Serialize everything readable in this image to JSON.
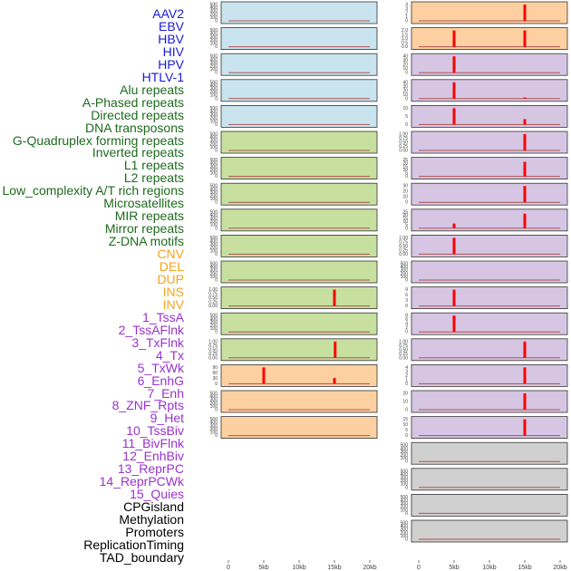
{
  "colors": {
    "blue": "#1a1ad4",
    "green": "#1d6b1d",
    "orange": "#f4a41c",
    "purple": "#9a32cd",
    "black": "#000000",
    "fill_lightblue": "#c9e4ee",
    "fill_green": "#c7e09f",
    "fill_orange": "#fcd0a0",
    "fill_lavender": "#d6c6e3",
    "fill_gray": "#d0d0d0",
    "bar": "#ff0000",
    "baseline": "#b05050"
  },
  "chart_data": {
    "type": "bar",
    "x_axis": {
      "ticks": [
        "0",
        "5kb",
        "10kb",
        "15kb",
        "20kb"
      ],
      "tick_values": [
        0,
        5000,
        10000,
        15000,
        20000
      ],
      "range": [
        0,
        20000
      ]
    },
    "rows": [
      {
        "label": "AAV2",
        "color": "blue"
      },
      {
        "label": "EBV",
        "color": "blue"
      },
      {
        "label": "HBV",
        "color": "blue"
      },
      {
        "label": "HIV",
        "color": "blue"
      },
      {
        "label": "HPV",
        "color": "blue"
      },
      {
        "label": "HTLV-1",
        "color": "blue"
      },
      {
        "label": "Alu repeats",
        "color": "green"
      },
      {
        "label": "A-Phased repeats",
        "color": "green"
      },
      {
        "label": "Directed repeats",
        "color": "green"
      },
      {
        "label": "DNA transposons",
        "color": "green"
      },
      {
        "label": "G-Quadruplex forming repeats",
        "color": "green"
      },
      {
        "label": "Inverted repeats",
        "color": "green"
      },
      {
        "label": "L1 repeats",
        "color": "green"
      },
      {
        "label": "L2 repeats",
        "color": "green"
      },
      {
        "label": "Low_complexity A/T rich regions",
        "color": "green"
      },
      {
        "label": "Microsatellites",
        "color": "green"
      },
      {
        "label": "MIR repeats",
        "color": "green"
      },
      {
        "label": "Mirror repeats",
        "color": "green"
      },
      {
        "label": "Z-DNA motifs",
        "color": "green"
      },
      {
        "label": "CNV",
        "color": "orange"
      },
      {
        "label": "DEL",
        "color": "orange"
      },
      {
        "label": "DUP",
        "color": "orange"
      },
      {
        "label": "INS",
        "color": "orange"
      },
      {
        "label": "INV",
        "color": "orange"
      },
      {
        "label": "1_TssA",
        "color": "purple"
      },
      {
        "label": "2_TssAFlnk",
        "color": "purple"
      },
      {
        "label": "3_TxFlnk",
        "color": "purple"
      },
      {
        "label": "4_Tx",
        "color": "purple"
      },
      {
        "label": "5_TxWk",
        "color": "purple"
      },
      {
        "label": "6_EnhG",
        "color": "purple"
      },
      {
        "label": "7_Enh",
        "color": "purple"
      },
      {
        "label": "8_ZNF_Rpts",
        "color": "purple"
      },
      {
        "label": "9_Het",
        "color": "purple"
      },
      {
        "label": "10_TssBiv",
        "color": "purple"
      },
      {
        "label": "11_BivFlnk",
        "color": "purple"
      },
      {
        "label": "12_EnhBiv",
        "color": "purple"
      },
      {
        "label": "13_ReprPC",
        "color": "purple"
      },
      {
        "label": "14_ReprPCWk",
        "color": "purple"
      },
      {
        "label": "15_Quies",
        "color": "purple"
      },
      {
        "label": "CPGisland",
        "color": "black"
      },
      {
        "label": "Methylation",
        "color": "black"
      },
      {
        "label": "Promoters",
        "color": "black"
      },
      {
        "label": "ReplicationTiming",
        "color": "black"
      },
      {
        "label": "TAD_boundary",
        "color": "black"
      }
    ],
    "left_panels": [
      {
        "fill": "fill_lightblue",
        "yticks": [
          "500",
          "400",
          "300",
          "200",
          "100",
          "0"
        ],
        "ymax": 500,
        "bars": []
      },
      {
        "fill": "fill_lightblue",
        "yticks": [
          "500",
          "400",
          "300",
          "200",
          "100",
          "0"
        ],
        "ymax": 500,
        "bars": []
      },
      {
        "fill": "fill_lightblue",
        "yticks": [
          "500",
          "400",
          "300",
          "200",
          "100",
          "0"
        ],
        "ymax": 500,
        "bars": []
      },
      {
        "fill": "fill_lightblue",
        "yticks": [
          "500",
          "400",
          "300",
          "200",
          "100",
          "0"
        ],
        "ymax": 500,
        "bars": []
      },
      {
        "fill": "fill_lightblue",
        "yticks": [
          "500",
          "400",
          "300",
          "200",
          "100",
          "0"
        ],
        "ymax": 500,
        "bars": []
      },
      {
        "fill": "fill_green",
        "yticks": [
          "500",
          "400",
          "300",
          "200",
          "100",
          "0"
        ],
        "ymax": 500,
        "bars": []
      },
      {
        "fill": "fill_green",
        "yticks": [
          "500",
          "400",
          "300",
          "200",
          "100",
          "0"
        ],
        "ymax": 500,
        "bars": []
      },
      {
        "fill": "fill_green",
        "yticks": [
          "500",
          "400",
          "300",
          "200",
          "100",
          "0"
        ],
        "ymax": 500,
        "bars": []
      },
      {
        "fill": "fill_green",
        "yticks": [
          "500",
          "400",
          "300",
          "200",
          "100",
          "0"
        ],
        "ymax": 500,
        "bars": []
      },
      {
        "fill": "fill_green",
        "yticks": [
          "500",
          "400",
          "300",
          "200",
          "100",
          "0"
        ],
        "ymax": 500,
        "bars": []
      },
      {
        "fill": "fill_green",
        "yticks": [
          "500",
          "400",
          "300",
          "200",
          "100",
          "0"
        ],
        "ymax": 500,
        "bars": []
      },
      {
        "fill": "fill_green",
        "yticks": [
          "1.00",
          "0.75",
          "0.50",
          "0.25",
          "0.00"
        ],
        "ymax": 1,
        "bars": [
          {
            "x": 15000,
            "value": 1
          }
        ]
      },
      {
        "fill": "fill_green",
        "yticks": [
          "500",
          "400",
          "300",
          "200",
          "100",
          "0"
        ],
        "ymax": 500,
        "bars": []
      },
      {
        "fill": "fill_green",
        "yticks": [
          "1.00",
          "0.75",
          "0.50",
          "0.25",
          "0.00"
        ],
        "ymax": 1,
        "bars": [
          {
            "x": 15100,
            "value": 1
          }
        ]
      },
      {
        "fill": "fill_orange",
        "yticks": [
          "90",
          "60",
          "30",
          "0"
        ],
        "ymax": 100,
        "bars": [
          {
            "x": 5000,
            "value": 100
          },
          {
            "x": 15000,
            "value": 35
          }
        ]
      },
      {
        "fill": "fill_orange",
        "yticks": [
          "500",
          "400",
          "300",
          "200",
          "100",
          "0"
        ],
        "ymax": 500,
        "bars": []
      },
      {
        "fill": "fill_orange",
        "yticks": [
          "500",
          "400",
          "300",
          "200",
          "100",
          "0"
        ],
        "ymax": 500,
        "bars": []
      }
    ],
    "right_panels": [
      {
        "fill": "fill_orange",
        "yticks": [
          "4",
          "3",
          "2",
          "1",
          "0"
        ],
        "ymax": 4,
        "bars": [
          {
            "x": 15000,
            "value": 4
          }
        ]
      },
      {
        "fill": "fill_orange",
        "yticks": [
          "2.0",
          "1.5",
          "1.0",
          "0.5",
          "0.0"
        ],
        "ymax": 2,
        "bars": [
          {
            "x": 5000,
            "value": 2
          },
          {
            "x": 15000,
            "value": 2
          }
        ]
      },
      {
        "fill": "fill_lavender",
        "yticks": [
          "40",
          "30",
          "20",
          "10",
          "0"
        ],
        "ymax": 45,
        "bars": [
          {
            "x": 5000,
            "value": 45
          }
        ]
      },
      {
        "fill": "fill_lavender",
        "yticks": [
          "40",
          "30",
          "20",
          "10",
          "0"
        ],
        "ymax": 45,
        "bars": [
          {
            "x": 5000,
            "value": 45
          },
          {
            "x": 15000,
            "value": 3
          }
        ]
      },
      {
        "fill": "fill_lavender",
        "yticks": [
          "10",
          "5",
          "0"
        ],
        "ymax": 15,
        "bars": [
          {
            "x": 5000,
            "value": 15
          },
          {
            "x": 15000,
            "value": 5
          }
        ]
      },
      {
        "fill": "fill_lavender",
        "yticks": [
          "1.00",
          "0.75",
          "0.50",
          "0.25",
          "0.00"
        ],
        "ymax": 1,
        "bars": [
          {
            "x": 15000,
            "value": 1
          }
        ]
      },
      {
        "fill": "fill_lavender",
        "yticks": [
          "25",
          "20",
          "15",
          "10",
          "5",
          "0"
        ],
        "ymax": 28,
        "bars": [
          {
            "x": 15000,
            "value": 25
          }
        ]
      },
      {
        "fill": "fill_lavender",
        "yticks": [
          "30",
          "20",
          "10",
          "0"
        ],
        "ymax": 35,
        "bars": [
          {
            "x": 15000,
            "value": 35
          }
        ]
      },
      {
        "fill": "fill_lavender",
        "yticks": [
          "25",
          "20",
          "15",
          "10",
          "5",
          "0"
        ],
        "ymax": 28,
        "bars": [
          {
            "x": 5000,
            "value": 8
          },
          {
            "x": 15000,
            "value": 25
          }
        ]
      },
      {
        "fill": "fill_lavender",
        "yticks": [
          "1.00",
          "0.75",
          "0.50",
          "0.25",
          "0.00"
        ],
        "ymax": 1,
        "bars": [
          {
            "x": 5000,
            "value": 1
          }
        ]
      },
      {
        "fill": "fill_lavender",
        "yticks": [
          "500",
          "400",
          "300",
          "200",
          "100",
          "0"
        ],
        "ymax": 500,
        "bars": []
      },
      {
        "fill": "fill_lavender",
        "yticks": [
          "9",
          "6",
          "3",
          "0"
        ],
        "ymax": 10,
        "bars": [
          {
            "x": 5000,
            "value": 10
          }
        ]
      },
      {
        "fill": "fill_lavender",
        "yticks": [
          "8",
          "6",
          "4",
          "2",
          "0"
        ],
        "ymax": 9,
        "bars": [
          {
            "x": 5000,
            "value": 9
          }
        ]
      },
      {
        "fill": "fill_lavender",
        "yticks": [
          "1.00",
          "0.75",
          "0.50",
          "0.25",
          "0.00"
        ],
        "ymax": 1,
        "bars": [
          {
            "x": 15000,
            "value": 1
          }
        ]
      },
      {
        "fill": "fill_lavender",
        "yticks": [
          "4",
          "3",
          "2",
          "1",
          "0"
        ],
        "ymax": 4,
        "bars": [
          {
            "x": 15000,
            "value": 4
          }
        ]
      },
      {
        "fill": "fill_lavender",
        "yticks": [
          "20",
          "10",
          "0"
        ],
        "ymax": 25,
        "bars": [
          {
            "x": 15000,
            "value": 25
          }
        ]
      },
      {
        "fill": "fill_lavender",
        "yticks": [
          "15",
          "10",
          "5",
          "0"
        ],
        "ymax": 17,
        "bars": [
          {
            "x": 15000,
            "value": 17
          }
        ]
      },
      {
        "fill": "fill_gray",
        "yticks": [
          "500",
          "400",
          "300",
          "200",
          "100",
          "0"
        ],
        "ymax": 500,
        "bars": []
      },
      {
        "fill": "fill_gray",
        "yticks": [
          "500",
          "400",
          "300",
          "200",
          "100",
          "0"
        ],
        "ymax": 500,
        "bars": []
      },
      {
        "fill": "fill_gray",
        "yticks": [
          "500",
          "400",
          "300",
          "200",
          "100",
          "0"
        ],
        "ymax": 500,
        "bars": []
      },
      {
        "fill": "fill_gray",
        "yticks": [
          "500",
          "400",
          "300",
          "200",
          "100",
          "0"
        ],
        "ymax": 500,
        "bars": []
      },
      {
        "fill": "fill_gray",
        "yticks": [
          "1.00",
          "0.75",
          "0.50",
          "0.25",
          "0.00"
        ],
        "ymax": 1,
        "bars": [
          {
            "x": 15000,
            "value": 1
          }
        ]
      }
    ]
  }
}
